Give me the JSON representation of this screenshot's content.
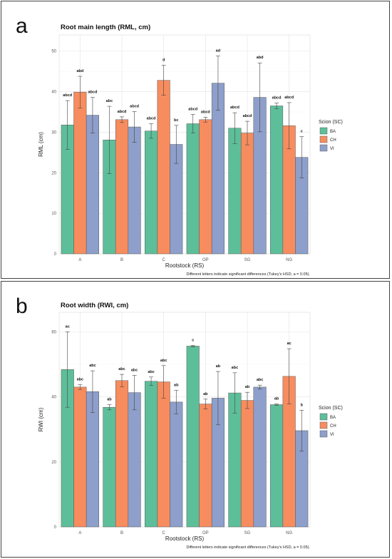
{
  "chart_data": [
    {
      "type": "bar",
      "panel_letter": "a",
      "title": "Root main length (RML, cm)",
      "xlabel": "Rootstock (RS)",
      "ylabel": "RML (cm)",
      "ylim": [
        0,
        54
      ],
      "yticks": [
        0,
        10,
        20,
        30,
        40,
        50
      ],
      "categories": [
        "A",
        "B",
        "C",
        "OP",
        "SG",
        "NG"
      ],
      "legend_title": "Scion (SC)",
      "legend_position": "right",
      "grid": true,
      "footnote": "Different letters indicate significant differences (Tukey's HSD, a = 0.05).",
      "series": [
        {
          "name": "BA",
          "color": "#5dbf9a",
          "values": [
            31.8,
            28.1,
            30.3,
            32.1,
            31.0,
            36.5
          ],
          "errors": [
            6.0,
            8.3,
            1.8,
            2.3,
            3.8,
            0.7
          ],
          "labels": [
            "abcd",
            "abc",
            "abcd",
            "abcd",
            "abcd",
            "abcd"
          ]
        },
        {
          "name": "CH",
          "color": "#f78c5f",
          "values": [
            39.9,
            33.1,
            42.8,
            33.1,
            29.8,
            31.6
          ],
          "errors": [
            3.9,
            0.7,
            3.7,
            0.6,
            2.9,
            5.7
          ],
          "labels": [
            "abd",
            "abcd",
            "d",
            "abcd",
            "abcd",
            "abcd"
          ]
        },
        {
          "name": "VI",
          "color": "#8d9fca",
          "values": [
            34.2,
            31.3,
            27.0,
            42.1,
            38.6,
            23.8
          ],
          "errors": [
            4.4,
            3.8,
            4.7,
            6.7,
            8.5,
            5.1
          ],
          "labels": [
            "abcd",
            "abcd",
            "bc",
            "ad",
            "abd",
            "c"
          ]
        }
      ]
    },
    {
      "type": "bar",
      "panel_letter": "b",
      "title": "Root width (RWI, cm)",
      "xlabel": "Rootstock (RS)",
      "ylabel": "RWI (cm)",
      "ylim": [
        0,
        66
      ],
      "yticks": [
        0,
        20,
        40,
        60
      ],
      "categories": [
        "A",
        "B",
        "C",
        "OP",
        "SG",
        "NG"
      ],
      "legend_title": "Scion (SC)",
      "legend_position": "right",
      "grid": true,
      "footnote": "Different letters indicate significant differences (Tukey's HSD, a = 0.05).",
      "series": [
        {
          "name": "BA",
          "color": "#5dbf9a",
          "values": [
            48.4,
            36.8,
            44.8,
            55.6,
            41.2,
            37.6
          ],
          "errors": [
            11.6,
            0.8,
            1.3,
            0.2,
            6.2,
            0.2
          ],
          "labels": [
            "ac",
            "ab",
            "abc",
            "c",
            "abc",
            "ab"
          ]
        },
        {
          "name": "CH",
          "color": "#f78c5f",
          "values": [
            43.0,
            45.0,
            44.6,
            37.8,
            38.9,
            46.3
          ],
          "errors": [
            0.7,
            1.9,
            5.0,
            1.5,
            2.5,
            8.5
          ],
          "labels": [
            "abc",
            "abc",
            "abc",
            "ab",
            "ab",
            "ac"
          ]
        },
        {
          "name": "VI",
          "color": "#8d9fca",
          "values": [
            41.6,
            41.3,
            38.4,
            39.6,
            43.0,
            29.6
          ],
          "errors": [
            6.4,
            5.3,
            3.6,
            8.2,
            0.6,
            6.3
          ],
          "labels": [
            "abc",
            "abc",
            "ab",
            "ab",
            "abc",
            "b"
          ]
        }
      ]
    }
  ]
}
